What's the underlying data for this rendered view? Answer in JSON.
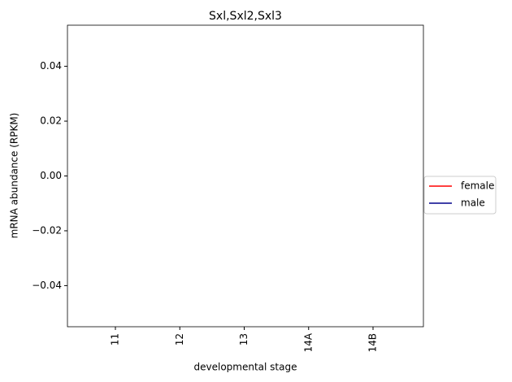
{
  "chart_data": {
    "type": "line",
    "title": "Sxl,Sxl2,Sxl3",
    "xlabel": "developmental stage",
    "ylabel": "mRNA abundance (RPKM)",
    "categories": [
      "11",
      "12",
      "13",
      "14A",
      "14B"
    ],
    "series": [
      {
        "name": "female",
        "color": "#ff0000",
        "values": [
          null,
          null,
          null,
          null,
          null
        ]
      },
      {
        "name": "male",
        "color": "#00008b",
        "values": [
          null,
          null,
          null,
          null,
          null
        ]
      }
    ],
    "ylim": [
      -0.055,
      0.055
    ],
    "yticks": [
      {
        "value": -0.04,
        "label": "−0.04"
      },
      {
        "value": -0.02,
        "label": "−0.02"
      },
      {
        "value": 0,
        "label": "0.00"
      },
      0.02,
      0.04
    ],
    "legend": "right"
  }
}
